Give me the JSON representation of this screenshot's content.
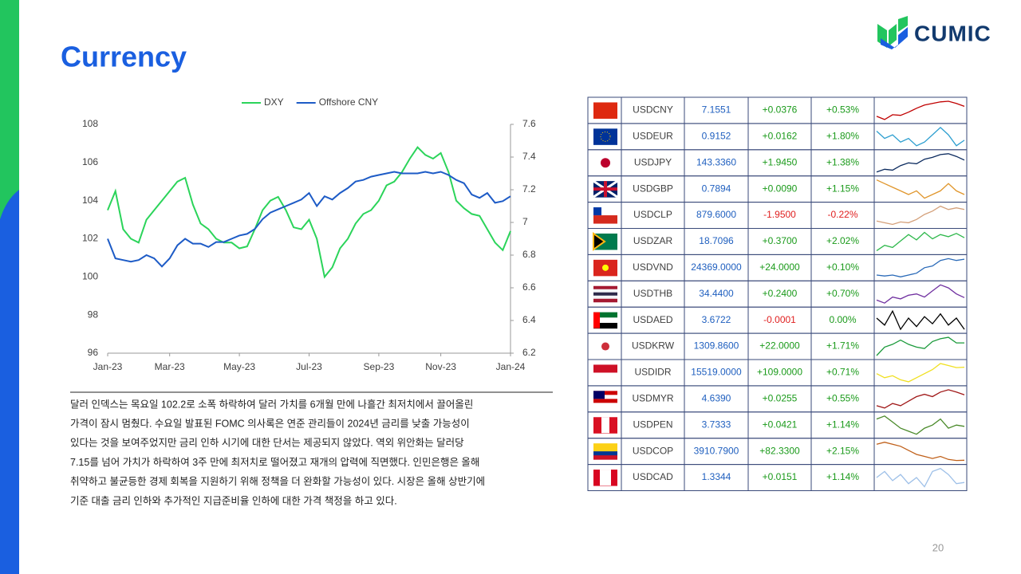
{
  "header": {
    "title": "Currency",
    "logo": "CUMIC",
    "page_number": "20"
  },
  "chart_data": {
    "type": "line",
    "categories": [
      "Jan-23",
      null,
      null,
      null,
      null,
      null,
      null,
      null,
      "Mar-23",
      null,
      null,
      null,
      null,
      null,
      null,
      null,
      null,
      "May-23",
      null,
      null,
      null,
      null,
      null,
      null,
      null,
      null,
      "Jul-23",
      null,
      null,
      null,
      null,
      null,
      null,
      null,
      null,
      "Sep-23",
      null,
      null,
      null,
      null,
      null,
      null,
      null,
      "Nov-23",
      null,
      null,
      null,
      null,
      null,
      null,
      null,
      null,
      "Jan-24"
    ],
    "series": [
      {
        "name": "DXY",
        "color": "#2bd45a",
        "values": [
          103.5,
          104.5,
          102.5,
          102,
          101.8,
          103,
          103.5,
          104,
          104.5,
          105,
          105.2,
          103.8,
          102.8,
          102.5,
          102,
          101.8,
          101.8,
          101.5,
          101.6,
          102.5,
          103.5,
          104,
          104.2,
          103.5,
          102.6,
          102.5,
          103,
          102,
          100,
          100.5,
          101.5,
          102,
          102.8,
          103.3,
          103.5,
          104,
          104.8,
          105,
          105.5,
          106.2,
          106.8,
          106.4,
          106.2,
          106.5,
          105.5,
          104,
          103.6,
          103.3,
          103.2,
          102.5,
          101.8,
          101.4,
          102.4
        ]
      },
      {
        "name": "Offshore CNY",
        "color": "#1d5bc6",
        "axis": "y2",
        "values": [
          6.9,
          6.78,
          6.77,
          6.76,
          6.77,
          6.8,
          6.78,
          6.73,
          6.78,
          6.86,
          6.9,
          6.87,
          6.87,
          6.85,
          6.88,
          6.88,
          6.9,
          6.92,
          6.93,
          6.96,
          7.02,
          7.06,
          7.08,
          7.1,
          7.12,
          7.14,
          7.18,
          7.1,
          7.16,
          7.14,
          7.18,
          7.21,
          7.25,
          7.26,
          7.28,
          7.29,
          7.3,
          7.31,
          7.3,
          7.3,
          7.3,
          7.31,
          7.3,
          7.31,
          7.29,
          7.26,
          7.24,
          7.17,
          7.15,
          7.18,
          7.12,
          7.13,
          7.16
        ]
      }
    ],
    "ylim": [
      96,
      108
    ],
    "yticks": [
      96,
      98,
      100,
      102,
      104,
      106,
      108
    ],
    "y2lim": [
      6.2,
      7.6
    ],
    "y2ticks": [
      6.2,
      6.4,
      6.6,
      6.8,
      7,
      7.2,
      7.4,
      7.6
    ],
    "legend": "top"
  },
  "table": {
    "rows": [
      {
        "pair": "USDCNY",
        "rate": "7.1551",
        "change": "+0.0376",
        "change_pct": "+0.53%",
        "color": "#c00000",
        "sparkline": [
          6.85,
          6.75,
          6.9,
          6.88,
          6.98,
          7.1,
          7.2,
          7.25,
          7.3,
          7.32,
          7.25,
          7.16
        ]
      },
      {
        "pair": "USDEUR",
        "rate": "0.9152",
        "change": "+0.0162",
        "change_pct": "+1.80%",
        "color": "#2e9fd0",
        "sparkline": [
          0.94,
          0.92,
          0.93,
          0.91,
          0.92,
          0.9,
          0.91,
          0.93,
          0.95,
          0.93,
          0.9,
          0.915
        ]
      },
      {
        "pair": "USDJPY",
        "rate": "143.3360",
        "change": "+1.9450",
        "change_pct": "+1.38%",
        "color": "#0b2a5e",
        "sparkline": [
          130,
          133,
          132,
          137,
          140,
          139,
          144,
          146,
          149,
          150,
          147,
          143
        ]
      },
      {
        "pair": "USDGBP",
        "rate": "0.7894",
        "change": "+0.0090",
        "change_pct": "+1.15%",
        "color": "#e0962c",
        "sparkline": [
          0.83,
          0.82,
          0.81,
          0.8,
          0.79,
          0.8,
          0.78,
          0.79,
          0.8,
          0.82,
          0.8,
          0.79
        ]
      },
      {
        "pair": "USDCLP",
        "rate": "879.6000",
        "change": "-1.9500",
        "change_pct": "-0.22%",
        "color": "#d4a07a",
        "sparkline": [
          810,
          800,
          790,
          805,
          800,
          820,
          850,
          870,
          900,
          880,
          890,
          880
        ]
      },
      {
        "pair": "USDZAR",
        "rate": "18.7096",
        "change": "+0.3700",
        "change_pct": "+2.02%",
        "color": "#2fb84c",
        "sparkline": [
          17.5,
          18,
          17.8,
          18.4,
          19,
          18.5,
          19.2,
          18.6,
          19,
          18.8,
          19.1,
          18.7
        ]
      },
      {
        "pair": "USDVND",
        "rate": "24369.0000",
        "change": "+24.0000",
        "change_pct": "+0.10%",
        "color": "#2a6ab8",
        "sparkline": [
          23500,
          23450,
          23500,
          23400,
          23500,
          23600,
          23900,
          24000,
          24300,
          24400,
          24300,
          24370
        ]
      },
      {
        "pair": "USDTHB",
        "rate": "34.4400",
        "change": "+0.2400",
        "change_pct": "+0.70%",
        "color": "#7030a0",
        "sparkline": [
          34,
          33.5,
          34.5,
          34.2,
          34.8,
          35,
          34.5,
          35.5,
          36.5,
          36,
          35,
          34.4
        ]
      },
      {
        "pair": "USDAED",
        "rate": "3.6722",
        "change": "-0.0001",
        "change_pct": "0.00%",
        "color": "#000000",
        "sparkline": [
          3.673,
          3.6725,
          3.6735,
          3.6722,
          3.673,
          3.6724,
          3.6731,
          3.6726,
          3.6733,
          3.6725,
          3.673,
          3.6722
        ]
      },
      {
        "pair": "USDKRW",
        "rate": "1309.8600",
        "change": "+22.0000",
        "change_pct": "+1.71%",
        "color": "#1a9a3a",
        "sparkline": [
          1220,
          1280,
          1300,
          1330,
          1300,
          1280,
          1270,
          1320,
          1340,
          1350,
          1310,
          1310
        ]
      },
      {
        "pair": "USDIDR",
        "rate": "15519.0000",
        "change": "+109.0000",
        "change_pct": "+0.71%",
        "color": "#f0e020",
        "sparkline": [
          15200,
          15000,
          15100,
          14900,
          14800,
          15000,
          15200,
          15400,
          15700,
          15600,
          15500,
          15520
        ]
      },
      {
        "pair": "USDMYR",
        "rate": "4.6390",
        "change": "+0.0255",
        "change_pct": "+0.55%",
        "color": "#a01818",
        "sparkline": [
          4.4,
          4.35,
          4.45,
          4.4,
          4.5,
          4.6,
          4.65,
          4.6,
          4.7,
          4.75,
          4.7,
          4.64
        ]
      },
      {
        "pair": "USDPEN",
        "rate": "3.7333",
        "change": "+0.0421",
        "change_pct": "+1.14%",
        "color": "#4a8a2a",
        "sparkline": [
          3.85,
          3.9,
          3.8,
          3.7,
          3.65,
          3.6,
          3.7,
          3.75,
          3.85,
          3.7,
          3.75,
          3.73
        ]
      },
      {
        "pair": "USDCOP",
        "rate": "3910.7900",
        "change": "+82.3300",
        "change_pct": "+2.15%",
        "color": "#c0601a",
        "sparkline": [
          4700,
          4800,
          4700,
          4600,
          4400,
          4200,
          4100,
          4000,
          4100,
          3950,
          3900,
          3910
        ]
      },
      {
        "pair": "USDCAD",
        "rate": "1.3344",
        "change": "+0.0151",
        "change_pct": "+1.14%",
        "color": "#9ec0e8",
        "sparkline": [
          1.35,
          1.37,
          1.34,
          1.36,
          1.33,
          1.35,
          1.32,
          1.37,
          1.38,
          1.36,
          1.33,
          1.334
        ]
      }
    ]
  },
  "text": {
    "lines": [
      "달러 인덱스는 목요일 102.2로 소폭 하락하여 달러 가치를 6개월 만에 나흘간 최저치에서 끌어올린",
      "가격이 잠시 멈췄다. 수요일 발표된 FOMC 의사록은 연준 관리들이 2024년 금리를 낮출 가능성이",
      "있다는 것을 보여주었지만 금리 인하 시기에 대한 단서는 제공되지 않았다. 역외 위안화는 달러당",
      "7.15를 넘어 가치가 하락하여 3주 만에 최저치로 떨어졌고 재개의 압력에 직면했다. 인민은행은 올해",
      "취약하고 불균등한 경제 회복을 지원하기 위해 정책을 더 완화할 가능성이 있다. 시장은 올해 상반기에",
      "기준 대출 금리 인하와 추가적인 지급준비율 인하에 대한 가격 책정을 하고 있다."
    ]
  }
}
